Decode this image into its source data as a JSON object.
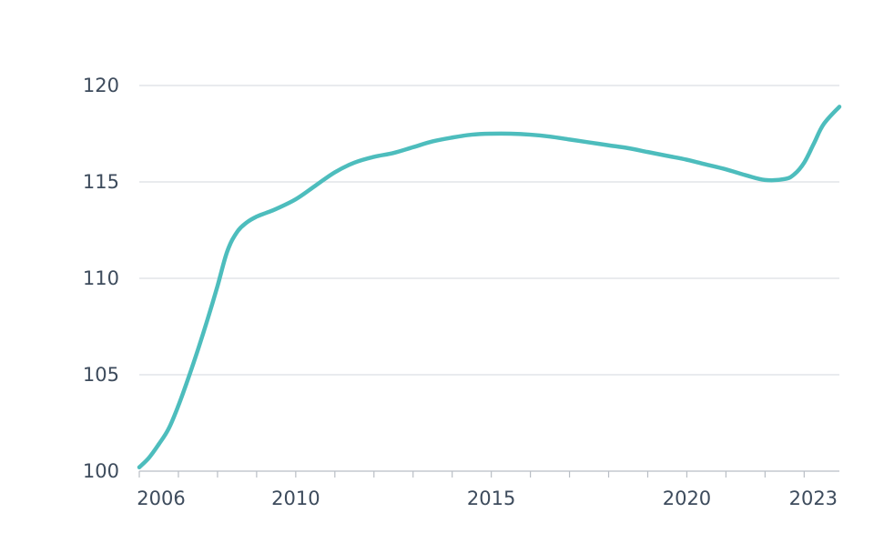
{
  "chart_data": {
    "type": "line",
    "title": "",
    "xlabel": "",
    "ylabel": "",
    "xlim": [
      2006,
      2023.9
    ],
    "ylim": [
      100,
      120
    ],
    "grid": true,
    "legend": "none",
    "x_ticks": [
      2006,
      2010,
      2015,
      2020,
      2023
    ],
    "x_minor_ticks": [
      2006,
      2007,
      2008,
      2009,
      2010,
      2011,
      2012,
      2013,
      2014,
      2015,
      2016,
      2017,
      2018,
      2019,
      2020,
      2021,
      2022,
      2023
    ],
    "x_tick_labels": [
      "2006",
      "2010",
      "2015",
      "2020",
      "2023"
    ],
    "y_ticks": [
      100,
      105,
      110,
      115,
      120
    ],
    "y_tick_labels": [
      "100",
      "105",
      "110",
      "115",
      "120"
    ],
    "series": [
      {
        "color": "#4dbdbd",
        "x": [
          2006.0,
          2006.25,
          2006.5,
          2006.75,
          2007.0,
          2007.25,
          2007.5,
          2007.75,
          2008.0,
          2008.25,
          2008.5,
          2008.75,
          2009.0,
          2009.25,
          2009.5,
          2010.0,
          2010.5,
          2011.0,
          2011.5,
          2012.0,
          2012.5,
          2013.0,
          2013.5,
          2014.0,
          2014.5,
          2015.0,
          2015.5,
          2016.0,
          2016.5,
          2017.0,
          2017.5,
          2018.0,
          2018.5,
          2019.0,
          2019.5,
          2020.0,
          2020.5,
          2021.0,
          2021.5,
          2022.0,
          2022.5,
          2022.75,
          2023.0,
          2023.25,
          2023.5,
          2023.9
        ],
        "values": [
          100.2,
          100.7,
          101.4,
          102.2,
          103.4,
          104.8,
          106.3,
          107.9,
          109.6,
          111.4,
          112.4,
          112.9,
          113.2,
          113.4,
          113.6,
          114.1,
          114.8,
          115.5,
          116.0,
          116.3,
          116.5,
          116.8,
          117.1,
          117.3,
          117.45,
          117.5,
          117.5,
          117.45,
          117.35,
          117.2,
          117.05,
          116.9,
          116.75,
          116.55,
          116.35,
          116.15,
          115.9,
          115.65,
          115.35,
          115.1,
          115.15,
          115.4,
          116.0,
          117.0,
          118.0,
          118.9
        ]
      }
    ]
  }
}
